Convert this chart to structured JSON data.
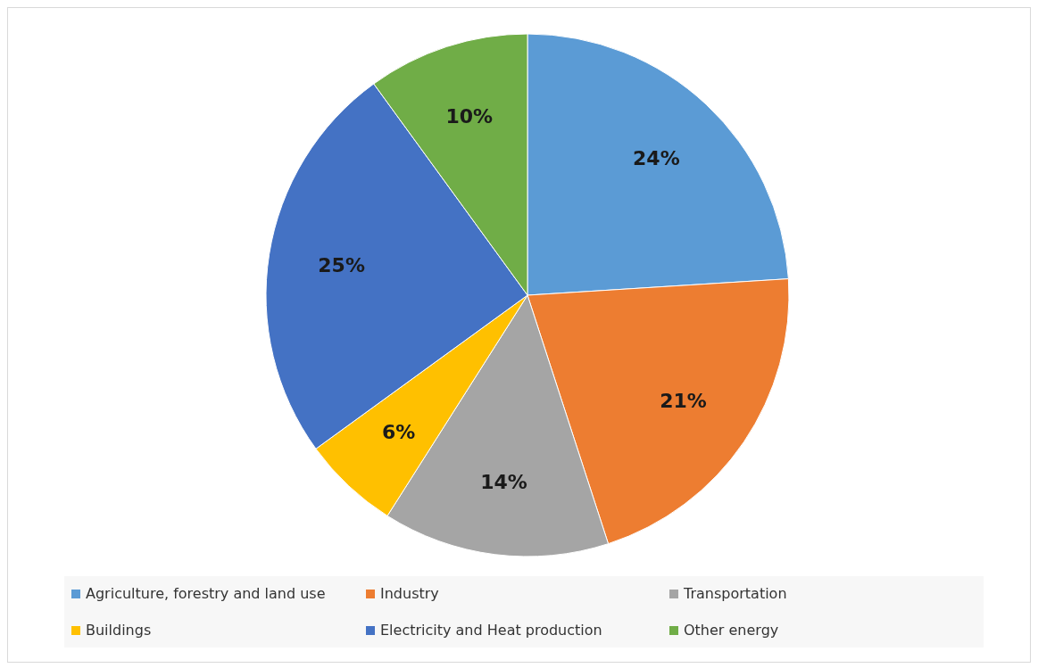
{
  "chart_data": {
    "type": "pie",
    "categories": [
      "Agriculture, forestry and land use",
      "Industry",
      "Transportation",
      "Buildings",
      "Electricity and Heat production",
      "Other energy"
    ],
    "values": [
      24,
      21,
      14,
      6,
      25,
      10
    ],
    "colors": [
      "#5b9bd5",
      "#ed7d31",
      "#a5a5a5",
      "#ffc000",
      "#4472c4",
      "#70ad47"
    ],
    "value_labels": [
      "24%",
      "21%",
      "14%",
      "6%",
      "25%",
      "10%"
    ],
    "legend": "bottom"
  }
}
